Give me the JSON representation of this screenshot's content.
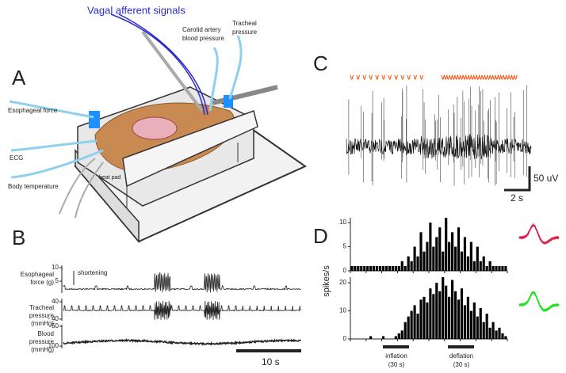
{
  "panels": {
    "a": "A",
    "b": "B",
    "c": "C",
    "d": "D"
  },
  "illustration": {
    "signal": "Vagal afferent signals",
    "carotid": [
      "Carotid artery",
      "blood pressure"
    ],
    "tracheal": [
      "Tracheal",
      "pressure"
    ],
    "esophageal": "Esophageal force",
    "ecg": "ECG",
    "temperature": "Body temperature",
    "heat_pad": "heat pad"
  },
  "panel_b": {
    "traces": [
      {
        "label": [
          "Esophageal",
          "force (g)"
        ],
        "ticks": [
          10,
          5
        ]
      },
      {
        "label": [
          "Tracheal",
          "pressure",
          "(mmHg)"
        ],
        "ticks": [
          40,
          {
            "value": -40,
            "label": "- 40"
          }
        ]
      },
      {
        "label": [
          "Blood",
          "pressure",
          "(mmHg)"
        ],
        "ticks": [
          50,
          100
        ]
      }
    ],
    "annotation": "shortening",
    "scale": "10 s"
  },
  "panel_c": {
    "scale_y": "50 uV",
    "scale_x": "2 s"
  },
  "panel_d": {
    "ylabel": "spikes/s",
    "inflation": [
      "inflation",
      "(30 s)"
    ],
    "deflation": [
      "deflation",
      "(30 s)"
    ]
  },
  "chart_data": [
    {
      "type": "bar",
      "color": "#000000",
      "ylim": [
        0,
        11
      ],
      "yticks": [
        0,
        5,
        10
      ],
      "values": [
        1,
        1,
        1,
        1,
        1,
        1,
        1,
        1,
        1,
        1,
        1,
        1,
        1,
        1,
        1,
        1,
        2,
        1,
        3,
        2,
        5,
        3,
        8,
        4,
        6,
        10,
        5,
        7,
        9,
        4,
        11,
        6,
        8,
        5,
        9,
        4,
        7,
        3,
        6,
        2,
        5,
        2,
        3,
        1,
        2,
        1,
        1,
        1,
        1,
        1
      ]
    },
    {
      "type": "bar",
      "color": "#000000",
      "ylim": [
        0,
        22
      ],
      "yticks": [
        0,
        10,
        20
      ],
      "values": [
        0,
        0,
        0,
        0,
        0,
        0,
        1,
        0,
        0,
        0,
        1,
        0,
        0,
        0,
        1,
        2,
        3,
        6,
        8,
        10,
        12,
        9,
        14,
        15,
        13,
        18,
        16,
        20,
        17,
        22,
        19,
        15,
        21,
        17,
        14,
        18,
        12,
        15,
        10,
        13,
        8,
        11,
        6,
        9,
        4,
        6,
        3,
        4,
        2,
        1
      ]
    }
  ]
}
